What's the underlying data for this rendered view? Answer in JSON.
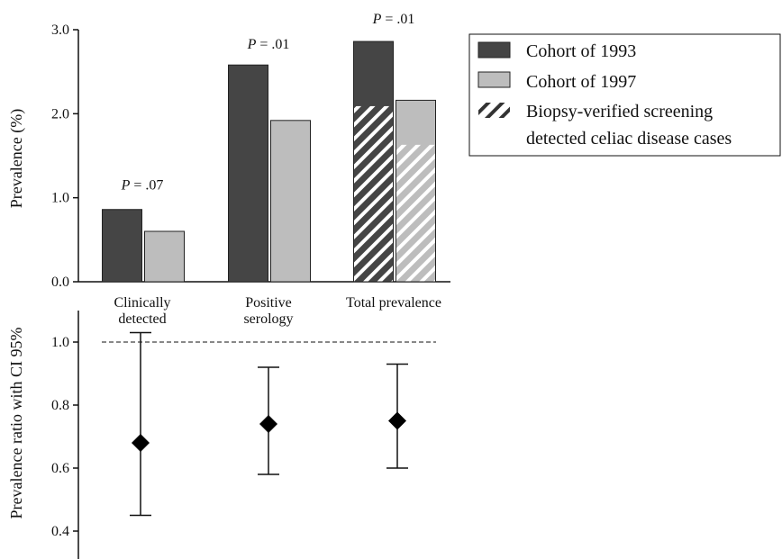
{
  "chart_data": [
    {
      "type": "bar",
      "ylabel": "Prevalence (%)",
      "ylim": [
        0,
        3.0
      ],
      "yticks": [
        "0.0",
        "1.0",
        "2.0",
        "3.0"
      ],
      "categories": [
        {
          "lines": [
            "Clinically",
            "detected"
          ]
        },
        {
          "lines": [
            "Positive",
            "serology"
          ]
        },
        {
          "lines": [
            "Total prevalence"
          ]
        }
      ],
      "series": [
        {
          "name": "Cohort of 1993",
          "color": "#454545",
          "values": [
            0.86,
            2.58,
            2.86
          ]
        },
        {
          "name": "Cohort of 1997",
          "color": "#bdbdbd",
          "values": [
            0.6,
            1.92,
            2.16
          ]
        }
      ],
      "hatched_subset": {
        "name": "Biopsy-verified screening detected celiac disease cases",
        "legend_lines": [
          "Biopsy-verified screening",
          "detected celiac disease cases"
        ],
        "category_index": 2,
        "values": [
          2.09,
          1.63
        ]
      },
      "annotations": [
        {
          "category_index": 0,
          "prefix": "P",
          "text": " = .07"
        },
        {
          "category_index": 1,
          "prefix": "P",
          "text": " = .01"
        },
        {
          "category_index": 2,
          "prefix": "P",
          "text": " = .01"
        }
      ],
      "legend_position": "top-right",
      "grid": false
    },
    {
      "type": "scatter",
      "ylabel": "Prevalence ratio with CI 95%",
      "ylim": [
        0.35,
        1.1
      ],
      "yticks": [
        "0.4",
        "0.6",
        "0.8",
        "1.0"
      ],
      "reference_line": 1.0,
      "points": [
        {
          "category_index": 0,
          "value": 0.68,
          "ci_low": 0.45,
          "ci_high": 1.03
        },
        {
          "category_index": 1,
          "value": 0.74,
          "ci_low": 0.58,
          "ci_high": 0.92
        },
        {
          "category_index": 2,
          "value": 0.75,
          "ci_low": 0.6,
          "ci_high": 0.93
        }
      ],
      "grid": false
    }
  ]
}
